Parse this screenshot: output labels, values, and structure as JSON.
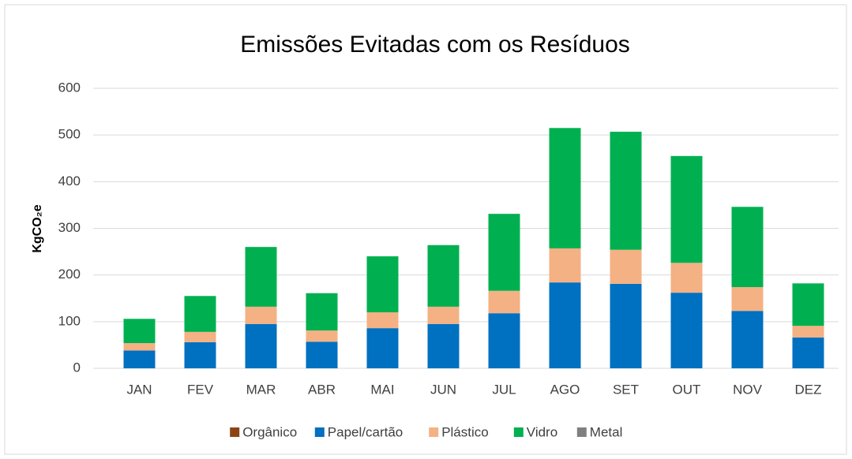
{
  "chart_data": {
    "type": "stacked_bar",
    "title": "Emissões Evitadas com os Resíduos",
    "y_label": "KgCO₂e",
    "categories": [
      "JAN",
      "FEV",
      "MAR",
      "ABR",
      "MAI",
      "JUN",
      "JUL",
      "AGO",
      "SET",
      "OUT",
      "NOV",
      "DEZ"
    ],
    "series": [
      {
        "name": "Orgânico",
        "color": "#8b4513",
        "values": [
          0,
          0,
          0,
          0,
          0,
          0,
          0,
          0,
          0,
          0,
          0,
          0
        ]
      },
      {
        "name": "Papel/cartão",
        "color": "#0070c0",
        "values": [
          38,
          56,
          95,
          57,
          86,
          95,
          118,
          184,
          181,
          162,
          123,
          66
        ]
      },
      {
        "name": "Plástico",
        "color": "#f4b183",
        "values": [
          16,
          22,
          37,
          24,
          34,
          37,
          48,
          73,
          73,
          64,
          51,
          25
        ]
      },
      {
        "name": "Vidro",
        "color": "#00b050",
        "values": [
          52,
          77,
          128,
          80,
          120,
          132,
          165,
          258,
          253,
          229,
          172,
          91
        ]
      },
      {
        "name": "Metal",
        "color": "#808080",
        "values": [
          0,
          0,
          0,
          0,
          0,
          0,
          0,
          0,
          0,
          0,
          0,
          0
        ]
      }
    ],
    "ylim": [
      0,
      600
    ],
    "yticks": [
      0,
      100,
      200,
      300,
      400,
      500,
      600
    ],
    "grid": true,
    "legend": "bottom"
  }
}
